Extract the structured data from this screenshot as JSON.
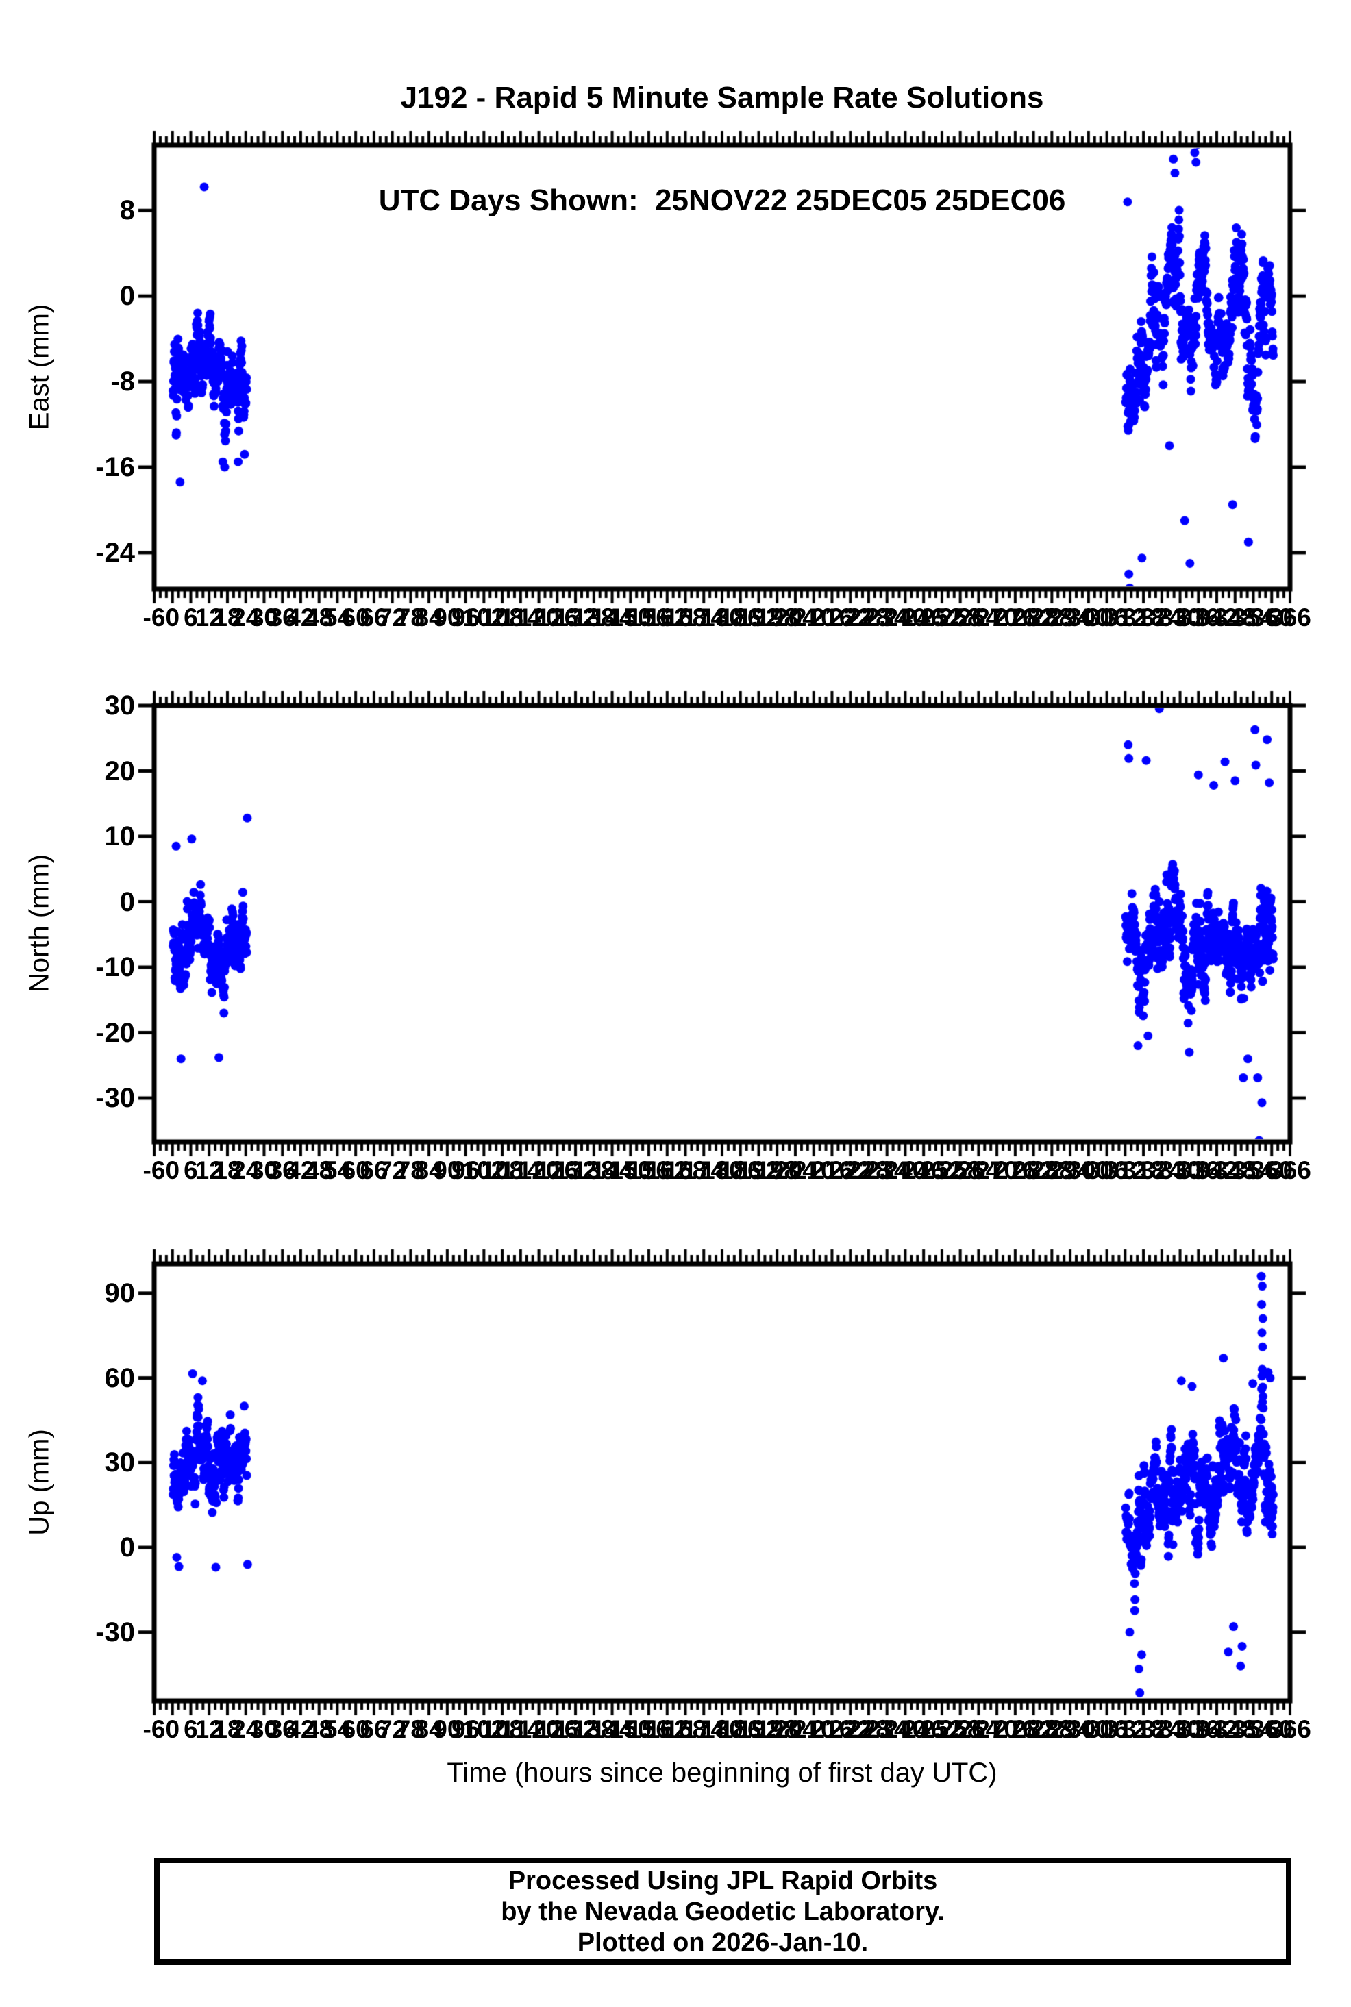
{
  "header": {
    "title_line1": "J192 - Rapid 5 Minute Sample Rate Solutions",
    "title_line2": "UTC Days Shown:  25NOV22 25DEC05 25DEC06"
  },
  "x_axis": {
    "title": "Time (hours since beginning of first day UTC)",
    "min": -6,
    "max": 366,
    "major_tick_step": 6,
    "minor_tick_step": 2,
    "tick_labels": [
      -6,
      0,
      6,
      12,
      18,
      24,
      30,
      36,
      42,
      48,
      54,
      60,
      66,
      72,
      78,
      84,
      90,
      96,
      102,
      108,
      114,
      120,
      126,
      132,
      138,
      144,
      150,
      156,
      162,
      168,
      174,
      180,
      186,
      192,
      198,
      204,
      210,
      216,
      222,
      228,
      234,
      240,
      246,
      252,
      258,
      264,
      270,
      276,
      282,
      288,
      294,
      300,
      306,
      312,
      318,
      324,
      330,
      336,
      342,
      348,
      354,
      360,
      366
    ]
  },
  "footer": {
    "lines": [
      "Processed Using JPL Rapid Orbits",
      "by the Nevada Geodetic Laboratory.",
      "Plotted on 2026-Jan-10."
    ]
  },
  "style": {
    "marker_color": "#0000ff",
    "marker_radius": 6.5,
    "frame_color": "#000000",
    "background": "#ffffff"
  },
  "chart_data": [
    {
      "id": "east",
      "type": "scatter",
      "ylabel": "East (mm)",
      "ylim": [
        -27.4,
        14.1
      ],
      "yticks": [
        8,
        0,
        -8,
        -16,
        -24
      ],
      "grid": false,
      "legend": "none",
      "clusters": [
        {
          "name": "day-25NOV22",
          "t_range": [
            0.2,
            24.3
          ],
          "n": 288,
          "sigma": 2.2,
          "rho": 0.85,
          "seed": 101,
          "mean_path": [
            [
              0,
              -8.5
            ],
            [
              3,
              -7
            ],
            [
              5,
              -9
            ],
            [
              7,
              -6
            ],
            [
              9,
              -3.5
            ],
            [
              11,
              -3
            ],
            [
              13,
              -6
            ],
            [
              15,
              -8
            ],
            [
              17,
              -10
            ],
            [
              19,
              -8.5
            ],
            [
              21,
              -8
            ],
            [
              24,
              -8
            ]
          ],
          "extra_points": [
            [
              10.4,
              10.2
            ],
            [
              2.5,
              -17.4
            ],
            [
              16.5,
              -15.5
            ],
            [
              17.1,
              -16
            ],
            [
              21.5,
              -15.5
            ],
            [
              23.6,
              -14.8
            ]
          ]
        },
        {
          "name": "days-25DEC05-25DEC06",
          "t_range": [
            312.2,
            360.5
          ],
          "n": 576,
          "sigma": 2.6,
          "rho": 0.85,
          "seed": 102,
          "mean_path": [
            [
              312,
              -9
            ],
            [
              314,
              -10
            ],
            [
              316,
              -8
            ],
            [
              318,
              -6
            ],
            [
              320,
              -5
            ],
            [
              322,
              -4
            ],
            [
              324,
              -3
            ],
            [
              326,
              1
            ],
            [
              328,
              4
            ],
            [
              329,
              2
            ],
            [
              330,
              -2
            ],
            [
              331,
              -5
            ],
            [
              332,
              -7
            ],
            [
              334,
              -3
            ],
            [
              336,
              3
            ],
            [
              337,
              4
            ],
            [
              338,
              2
            ],
            [
              340,
              -2
            ],
            [
              342,
              -5
            ],
            [
              344,
              -6
            ],
            [
              346,
              -3
            ],
            [
              348,
              0
            ],
            [
              350,
              2
            ],
            [
              351,
              0
            ],
            [
              352,
              -4
            ],
            [
              353,
              -7
            ],
            [
              354,
              -9
            ],
            [
              355,
              -8
            ],
            [
              356,
              -6
            ],
            [
              357,
              -4
            ],
            [
              358,
              -3
            ],
            [
              359,
              -2
            ],
            [
              360,
              -1
            ]
          ],
          "extra_points": [
            [
              313.2,
              -26
            ],
            [
              313.5,
              -27.3
            ],
            [
              317.5,
              -24.5
            ],
            [
              331.5,
              -21
            ],
            [
              333.2,
              -25
            ],
            [
              334.8,
              13.4
            ],
            [
              335.2,
              12.5
            ],
            [
              335.8,
              14.2
            ],
            [
              327.8,
              12.8
            ],
            [
              328.3,
              11.5
            ],
            [
              352.4,
              -23
            ],
            [
              347.2,
              -19.5
            ],
            [
              312.8,
              8.8
            ],
            [
              326.5,
              -14
            ]
          ]
        }
      ]
    },
    {
      "id": "north",
      "type": "scatter",
      "ylabel": "North (mm)",
      "ylim": [
        -36.7,
        30
      ],
      "yticks": [
        30,
        20,
        10,
        0,
        -10,
        -20,
        -30
      ],
      "grid": false,
      "legend": "none",
      "clusters": [
        {
          "name": "day-25NOV22",
          "t_range": [
            0.2,
            24.3
          ],
          "n": 288,
          "sigma": 3.0,
          "rho": 0.8,
          "seed": 201,
          "mean_path": [
            [
              0,
              -5
            ],
            [
              2,
              -8
            ],
            [
              4,
              -9
            ],
            [
              6,
              -6
            ],
            [
              8,
              -4
            ],
            [
              10,
              -5
            ],
            [
              12,
              -6
            ],
            [
              14,
              -8
            ],
            [
              16,
              -9
            ],
            [
              18,
              -7
            ],
            [
              20,
              -5
            ],
            [
              22,
              -4
            ],
            [
              24,
              -4
            ]
          ],
          "extra_points": [
            [
              2.8,
              -24
            ],
            [
              15.2,
              -23.8
            ],
            [
              24.5,
              12.8
            ],
            [
              6.3,
              9.6
            ],
            [
              1.2,
              8.5
            ]
          ]
        },
        {
          "name": "days-25DEC05-25DEC06",
          "t_range": [
            312.2,
            360.5
          ],
          "n": 576,
          "sigma": 3.6,
          "rho": 0.8,
          "seed": 202,
          "mean_path": [
            [
              312,
              -4
            ],
            [
              314,
              -6
            ],
            [
              316,
              -8
            ],
            [
              318,
              -7
            ],
            [
              320,
              -5
            ],
            [
              322,
              -6
            ],
            [
              324,
              -5
            ],
            [
              326,
              -4
            ],
            [
              328,
              -4
            ],
            [
              330,
              -6
            ],
            [
              332,
              -8
            ],
            [
              334,
              -9
            ],
            [
              336,
              -8
            ],
            [
              338,
              -7
            ],
            [
              340,
              -6
            ],
            [
              342,
              -7
            ],
            [
              344,
              -6
            ],
            [
              346,
              -7
            ],
            [
              348,
              -8
            ],
            [
              350,
              -7
            ],
            [
              352,
              -6
            ],
            [
              354,
              -5
            ],
            [
              356,
              -6
            ],
            [
              358,
              -5
            ],
            [
              360,
              -5
            ]
          ],
          "extra_points": [
            [
              323.2,
              29.5
            ],
            [
              313.0,
              24
            ],
            [
              313.2,
              21.9
            ],
            [
              318.9,
              21.6
            ],
            [
              344.7,
              21.4
            ],
            [
              354.5,
              26.3
            ],
            [
              354.8,
              20.9
            ],
            [
              336.0,
              19.4
            ],
            [
              348.0,
              18.5
            ],
            [
              341.0,
              17.8
            ],
            [
              358.5,
              24.8
            ],
            [
              359.2,
              18.2
            ],
            [
              316.2,
              -22
            ],
            [
              319.5,
              -20.5
            ],
            [
              333.0,
              -23
            ],
            [
              350.7,
              -26.9
            ],
            [
              355.4,
              -26.9
            ],
            [
              356.8,
              -30.7
            ],
            [
              355.9,
              -36.5
            ],
            [
              352.2,
              -24
            ]
          ]
        }
      ]
    },
    {
      "id": "up",
      "type": "scatter",
      "ylabel": "Up (mm)",
      "ylim": [
        -54.3,
        100.4
      ],
      "yticks": [
        90,
        60,
        30,
        0,
        -30
      ],
      "grid": false,
      "legend": "none",
      "clusters": [
        {
          "name": "day-25NOV22",
          "t_range": [
            0.2,
            24.3
          ],
          "n": 288,
          "sigma": 7,
          "rho": 0.8,
          "seed": 301,
          "mean_path": [
            [
              0,
              16
            ],
            [
              2,
              22
            ],
            [
              4,
              28
            ],
            [
              6,
              33
            ],
            [
              8,
              35
            ],
            [
              10,
              34
            ],
            [
              12,
              30
            ],
            [
              14,
              26
            ],
            [
              16,
              28
            ],
            [
              18,
              30
            ],
            [
              20,
              31
            ],
            [
              22,
              32
            ],
            [
              24,
              30
            ]
          ],
          "extra_points": [
            [
              1.4,
              -3.5
            ],
            [
              2.1,
              -6.8
            ],
            [
              14.2,
              -7
            ],
            [
              6.6,
              61.5
            ],
            [
              9.8,
              59
            ],
            [
              23.5,
              50
            ],
            [
              24.6,
              -6
            ]
          ]
        },
        {
          "name": "days-25DEC05-25DEC06",
          "t_range": [
            312.2,
            360.5
          ],
          "n": 576,
          "sigma": 9,
          "rho": 0.8,
          "seed": 302,
          "mean_path": [
            [
              312,
              4
            ],
            [
              314,
              6
            ],
            [
              316,
              8
            ],
            [
              318,
              10
            ],
            [
              320,
              14
            ],
            [
              322,
              16
            ],
            [
              324,
              15
            ],
            [
              326,
              18
            ],
            [
              328,
              20
            ],
            [
              330,
              24
            ],
            [
              332,
              26
            ],
            [
              334,
              25
            ],
            [
              336,
              28
            ],
            [
              338,
              26
            ],
            [
              340,
              22
            ],
            [
              342,
              26
            ],
            [
              344,
              30
            ],
            [
              346,
              32
            ],
            [
              348,
              36
            ],
            [
              350,
              30
            ],
            [
              352,
              26
            ],
            [
              354,
              30
            ],
            [
              356,
              32
            ],
            [
              358,
              30
            ],
            [
              360,
              28
            ]
          ],
          "extra_points": [
            [
              316.8,
              -51.5
            ],
            [
              316.5,
              -43
            ],
            [
              317.4,
              -38
            ],
            [
              313.5,
              -30
            ],
            [
              345.8,
              -37
            ],
            [
              349.8,
              -42
            ],
            [
              350.3,
              -35
            ],
            [
              347.5,
              -28
            ],
            [
              356.6,
              96
            ],
            [
              356.9,
              92.5
            ],
            [
              356.7,
              86
            ],
            [
              357.1,
              81
            ],
            [
              356.8,
              76
            ],
            [
              357.0,
              71
            ],
            [
              358.8,
              62
            ],
            [
              344.2,
              67
            ],
            [
              330.4,
              59
            ],
            [
              353.8,
              58
            ],
            [
              359.5,
              60
            ],
            [
              333.9,
              57
            ]
          ]
        }
      ]
    }
  ]
}
